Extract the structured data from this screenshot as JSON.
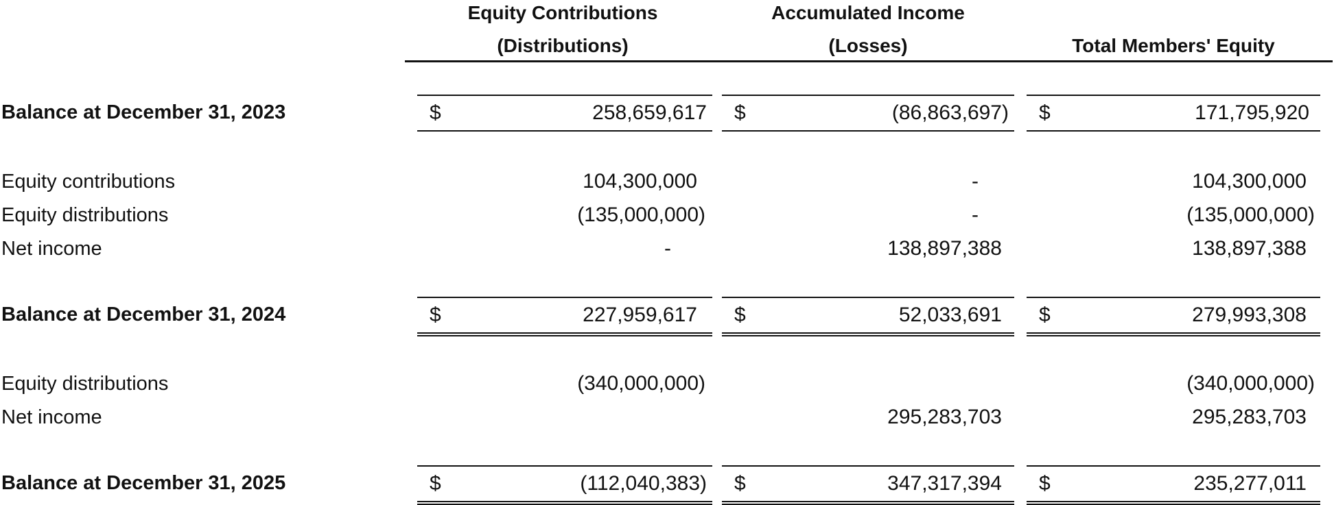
{
  "headers": {
    "col1_line1": "Equity Contributions",
    "col1_line2": "(Distributions)",
    "col2_line1": "Accumulated Income",
    "col2_line2": "(Losses)",
    "col3": "Total Members' Equity"
  },
  "currency_symbol": "$",
  "balance_2023": {
    "label": "Balance at December 31, 2023",
    "col1": "258,659,617",
    "col2": "(86,863,697)",
    "col3": "171,795,920"
  },
  "activity_2024": [
    {
      "label": "Equity contributions",
      "col1": "104,300,000",
      "col2": "-",
      "col3": "104,300,000"
    },
    {
      "label": "Equity distributions",
      "col1": "(135,000,000)",
      "col2": "-",
      "col3": "(135,000,000)"
    },
    {
      "label": "Net income",
      "col1": "-",
      "col2": "138,897,388",
      "col3": "138,897,388"
    }
  ],
  "balance_2024": {
    "label": "Balance at December 31, 2024",
    "col1": "227,959,617",
    "col2": "52,033,691",
    "col3": "279,993,308"
  },
  "activity_2025": [
    {
      "label": "Equity distributions",
      "col1": "(340,000,000)",
      "col2": "",
      "col3": "(340,000,000)"
    },
    {
      "label": "Net income",
      "col1": "",
      "col2": "295,283,703",
      "col3": "295,283,703"
    }
  ],
  "balance_2025": {
    "label": "Balance at December 31, 2025",
    "col1": "(112,040,383)",
    "col2": "347,317,394",
    "col3": "235,277,011"
  }
}
